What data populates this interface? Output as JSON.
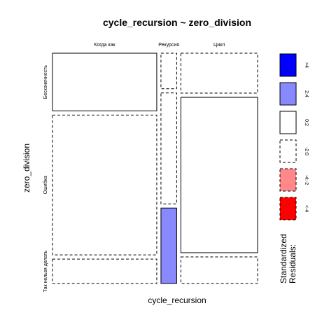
{
  "chart_data": {
    "type": "mosaic",
    "title": "cycle_recursion ~ zero_division",
    "xlabel": "cycle_recursion",
    "ylabel": "zero_division",
    "x_categories": [
      "Когда как",
      "Рекурсия",
      "Цикл"
    ],
    "y_categories": [
      "Бесконечность",
      "Ошибка",
      "Так нельзя делать"
    ],
    "x_proportions": [
      0.53,
      0.08,
      0.39
    ],
    "cells": [
      {
        "x": "Когда как",
        "y": "Бесконечность",
        "proportion": 0.26,
        "residual_band": "0:2"
      },
      {
        "x": "Когда как",
        "y": "Ошибка",
        "proportion": 0.63,
        "residual_band": "-2:0"
      },
      {
        "x": "Когда как",
        "y": "Так нельзя делать",
        "proportion": 0.11,
        "residual_band": "-2:0"
      },
      {
        "x": "Рекурсия",
        "y": "Бесконечность",
        "proportion": 0.16,
        "residual_band": "-2:0"
      },
      {
        "x": "Рекурсия",
        "y": "Ошибка",
        "proportion": 0.5,
        "residual_band": "-2:0"
      },
      {
        "x": "Рекурсия",
        "y": "Так нельзя делать",
        "proportion": 0.34,
        "residual_band": "2:4"
      },
      {
        "x": "Цикл",
        "y": "Бесконечность",
        "proportion": 0.18,
        "residual_band": "-2:0"
      },
      {
        "x": "Цикл",
        "y": "Ошибка",
        "proportion": 0.7,
        "residual_band": "0:2"
      },
      {
        "x": "Цикл",
        "y": "Так нельзя делать",
        "proportion": 0.12,
        "residual_band": "-2:0"
      }
    ],
    "legend": {
      "title_lines": [
        "Standardized",
        "Residuals:"
      ],
      "placement": "right",
      "bands": [
        {
          "label": ">4",
          "color": "#0000ff",
          "dashed": false
        },
        {
          "label": "2:4",
          "color": "#8888ff",
          "dashed": false
        },
        {
          "label": "0:2",
          "color": "#ffffff",
          "dashed": false
        },
        {
          "label": "-2:0",
          "color": "#ffffff",
          "dashed": true
        },
        {
          "label": "-4:-2",
          "color": "#ff8888",
          "dashed": true
        },
        {
          "label": "<-4",
          "color": "#ff0000",
          "dashed": true
        }
      ]
    },
    "grid": false
  }
}
